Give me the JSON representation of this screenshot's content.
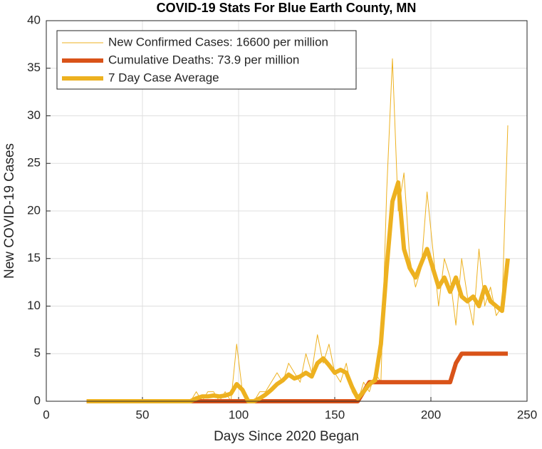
{
  "chart_data": {
    "type": "line",
    "title": "COVID-19 Stats For Blue Earth County, MN",
    "xlabel": "Days Since 2020 Began",
    "ylabel": "New COVID-19 Cases",
    "x": [
      21,
      24,
      27,
      30,
      33,
      36,
      39,
      42,
      45,
      48,
      51,
      54,
      57,
      60,
      63,
      66,
      69,
      72,
      75,
      78,
      81,
      84,
      87,
      90,
      93,
      96,
      99,
      102,
      105,
      108,
      111,
      114,
      117,
      120,
      123,
      126,
      129,
      132,
      135,
      138,
      141,
      144,
      147,
      150,
      153,
      156,
      159,
      162,
      165,
      168,
      171,
      174,
      177,
      180,
      183,
      186,
      189,
      192,
      195,
      198,
      201,
      204,
      207,
      210,
      213,
      216,
      219,
      222,
      225,
      228,
      231,
      234,
      237,
      240
    ],
    "series": [
      {
        "name": "New Confirmed Cases: 16600 per million",
        "color": "#EDB120",
        "width": 1,
        "values": [
          0,
          0,
          0,
          0,
          0,
          0,
          0,
          0,
          0,
          0,
          0,
          0,
          0,
          0,
          0,
          0,
          0,
          0,
          0,
          1,
          0,
          1,
          1,
          0,
          1,
          0,
          6,
          1,
          0,
          0,
          1,
          1,
          2,
          3,
          2,
          4,
          3,
          2,
          5,
          3,
          7,
          4,
          6,
          3,
          2,
          4,
          1,
          0,
          2,
          1,
          3,
          2,
          22,
          36,
          20,
          24,
          15,
          12,
          14,
          22,
          16,
          10,
          15,
          13,
          8,
          15,
          11,
          8,
          16,
          10,
          12,
          9,
          10,
          29
        ]
      },
      {
        "name": "Cumulative Deaths: 73.9 per million",
        "color": "#D95319",
        "width": 6,
        "values": [
          0,
          0,
          0,
          0,
          0,
          0,
          0,
          0,
          0,
          0,
          0,
          0,
          0,
          0,
          0,
          0,
          0,
          0,
          0,
          0,
          0,
          0,
          0,
          0,
          0,
          0,
          0,
          0,
          0,
          0,
          0,
          0,
          0,
          0,
          0,
          0,
          0,
          0,
          0,
          0,
          0,
          0,
          0,
          0,
          0,
          0,
          0,
          0,
          1,
          2,
          2,
          2,
          2,
          2,
          2,
          2,
          2,
          2,
          2,
          2,
          2,
          2,
          2,
          2,
          4,
          5,
          5,
          5,
          5,
          5,
          5,
          5,
          5,
          5
        ]
      },
      {
        "name": "7 Day Case Average",
        "color": "#EDB120",
        "width": 6,
        "values": [
          0,
          0,
          0,
          0,
          0,
          0,
          0,
          0,
          0,
          0,
          0,
          0,
          0,
          0,
          0,
          0,
          0,
          0,
          0,
          0.3,
          0.5,
          0.5,
          0.6,
          0.5,
          0.6,
          0.8,
          1.8,
          1.2,
          0,
          0,
          0.3,
          0.7,
          1.2,
          1.8,
          2.2,
          2.8,
          2.4,
          2.6,
          3,
          2.6,
          4,
          4.5,
          3.8,
          3,
          3.3,
          3,
          1.5,
          0.3,
          1,
          1.8,
          2.2,
          6,
          14,
          21,
          23,
          16,
          14,
          13,
          14.5,
          16,
          14,
          12,
          13,
          11.5,
          13,
          11,
          10.5,
          11,
          10,
          12,
          10.5,
          10,
          9.5,
          15
        ]
      }
    ],
    "xlim": [
      0,
      250
    ],
    "xticks": [
      0,
      50,
      100,
      150,
      200,
      250
    ],
    "ylim": [
      0,
      40
    ],
    "yticks": [
      0,
      5,
      10,
      15,
      20,
      25,
      30,
      35,
      40
    ],
    "grid": true,
    "legend": "upper-left"
  }
}
